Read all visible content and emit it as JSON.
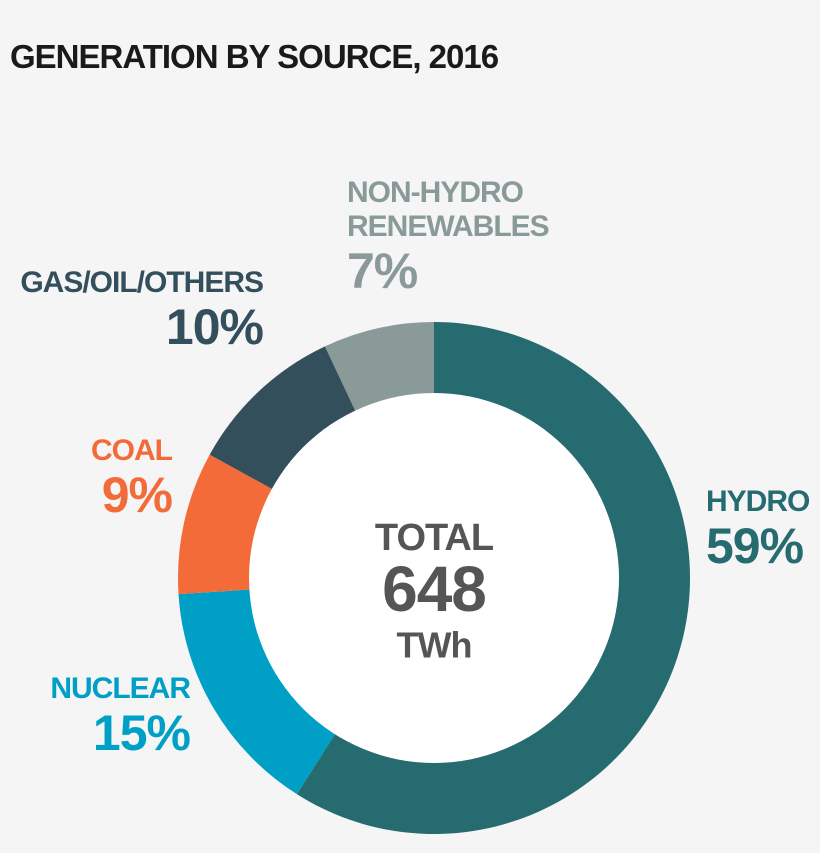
{
  "chart_data": {
    "type": "donut",
    "title": "GENERATION BY SOURCE, 2016",
    "categories": [
      "HYDRO",
      "NUCLEAR",
      "COAL",
      "GAS/OIL/OTHERS",
      "NON-HYDRO RENEWABLES"
    ],
    "values": [
      59,
      15,
      9,
      10,
      7
    ],
    "value_labels": [
      "59%",
      "15%",
      "9%",
      "10%",
      "7%"
    ],
    "colors": [
      "#266b70",
      "#00a0c6",
      "#f26b38",
      "#344f5c",
      "#8a9a99"
    ],
    "center_label": "TOTAL",
    "total": 648,
    "total_unit": "TWh"
  }
}
